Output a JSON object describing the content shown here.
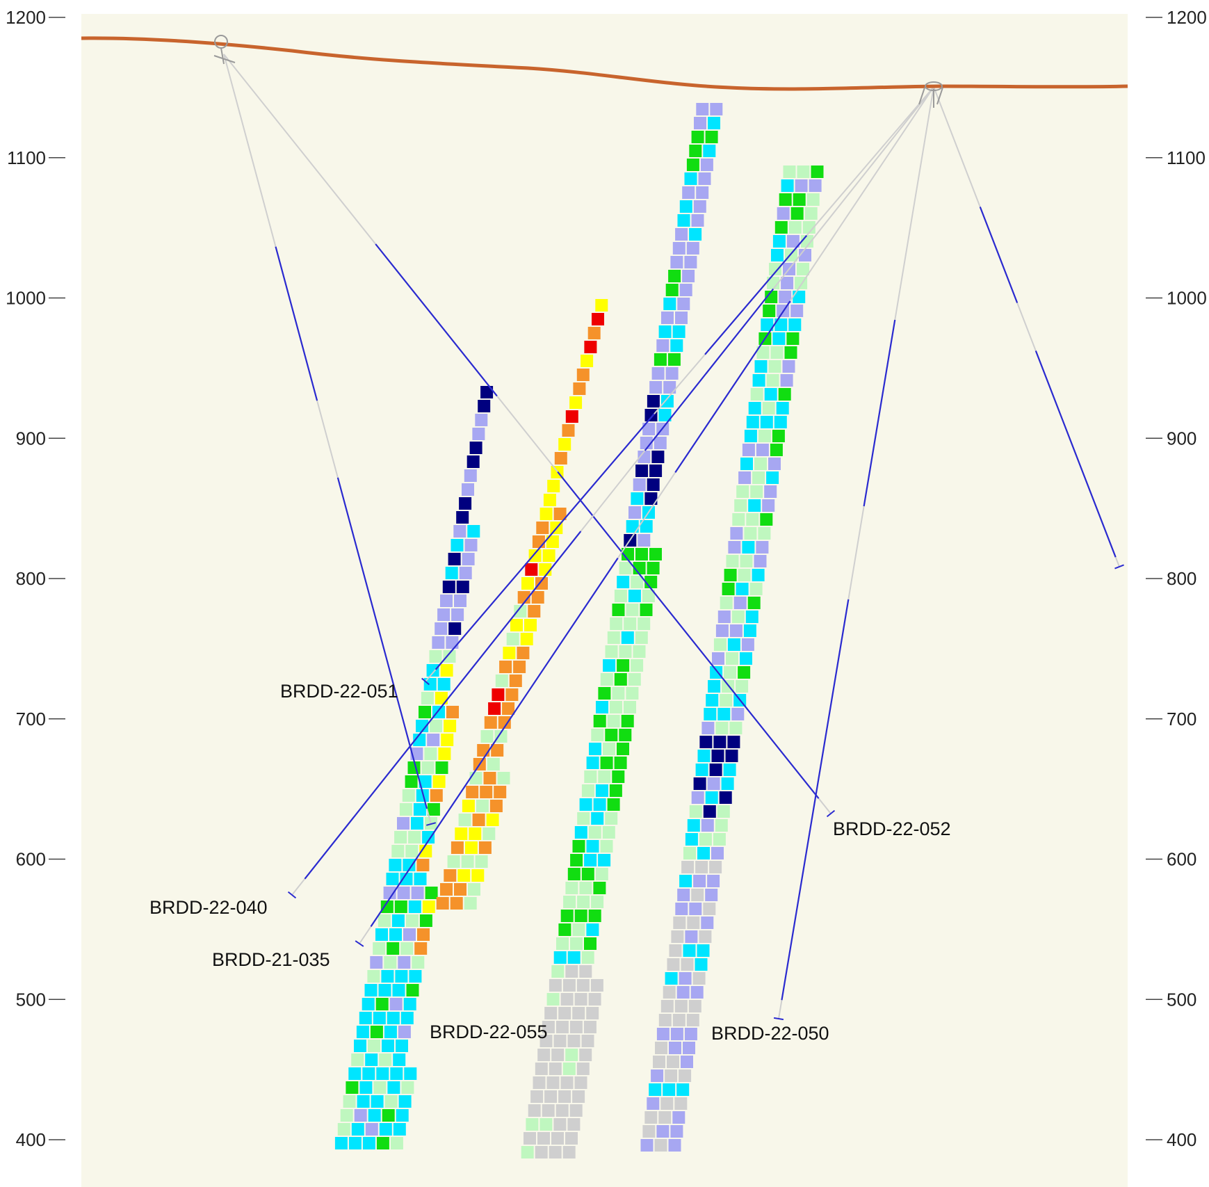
{
  "chart_data": {
    "type": "cross-section",
    "y_axis": {
      "label": "",
      "ticks": [
        1200,
        1100,
        1000,
        900,
        800,
        700,
        600,
        500,
        400
      ],
      "range": [
        385,
        1200
      ]
    },
    "colors": {
      "background": "#f8f7ea",
      "topography": "#c8642d",
      "trace": "#cfcfcf",
      "intercept": "#2a2ad0",
      "grades": [
        "#cfcfcf",
        "#a7a7f2",
        "#00007f",
        "#00e5ff",
        "#bff7bf",
        "#11dd11",
        "#ffff00",
        "#f5922a",
        "#ee0000"
      ]
    },
    "drillholes": [
      {
        "name": "BRDD-22-051"
      },
      {
        "name": "BRDD-22-052"
      },
      {
        "name": "BRDD-22-040"
      },
      {
        "name": "BRDD-21-035"
      },
      {
        "name": "BRDD-22-055"
      },
      {
        "name": "BRDD-22-050"
      }
    ]
  }
}
